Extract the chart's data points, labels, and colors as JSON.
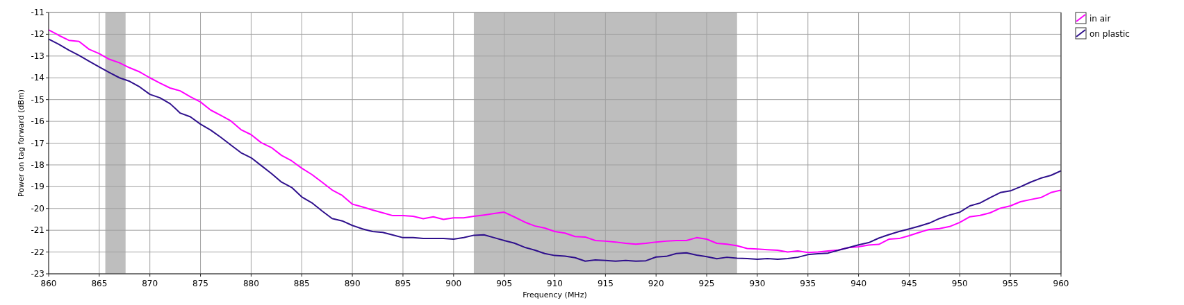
{
  "chart_data": {
    "type": "line",
    "xlabel": "Frequency (MHz)",
    "ylabel": "Power on tag forward (dBm)",
    "x": [
      860,
      861,
      862,
      863,
      864,
      865,
      866,
      867,
      868,
      869,
      870,
      871,
      872,
      873,
      874,
      875,
      876,
      877,
      878,
      879,
      880,
      881,
      882,
      883,
      884,
      885,
      886,
      887,
      888,
      889,
      890,
      891,
      892,
      893,
      894,
      895,
      896,
      897,
      898,
      899,
      900,
      901,
      902,
      903,
      904,
      905,
      906,
      907,
      908,
      909,
      910,
      911,
      912,
      913,
      914,
      915,
      916,
      917,
      918,
      919,
      920,
      921,
      922,
      923,
      924,
      925,
      926,
      927,
      928,
      929,
      930,
      931,
      932,
      933,
      934,
      935,
      936,
      937,
      938,
      939,
      940,
      941,
      942,
      943,
      944,
      945,
      946,
      947,
      948,
      949,
      950,
      951,
      952,
      953,
      954,
      955,
      956,
      957,
      958,
      959,
      960
    ],
    "series": [
      {
        "name": "in air",
        "color": "#ff00ff",
        "values": [
          -11.8,
          -12.05,
          -12.28,
          -12.33,
          -12.69,
          -12.89,
          -13.15,
          -13.31,
          -13.54,
          -13.73,
          -14.0,
          -14.24,
          -14.47,
          -14.6,
          -14.87,
          -15.11,
          -15.48,
          -15.72,
          -15.98,
          -16.38,
          -16.61,
          -16.98,
          -17.2,
          -17.56,
          -17.81,
          -18.15,
          -18.44,
          -18.79,
          -19.15,
          -19.4,
          -19.8,
          -19.93,
          -20.07,
          -20.2,
          -20.33,
          -20.33,
          -20.36,
          -20.47,
          -20.38,
          -20.5,
          -20.43,
          -20.43,
          -20.36,
          -20.3,
          -20.23,
          -20.17,
          -20.39,
          -20.62,
          -20.8,
          -20.9,
          -21.06,
          -21.13,
          -21.29,
          -21.31,
          -21.47,
          -21.5,
          -21.54,
          -21.6,
          -21.64,
          -21.6,
          -21.54,
          -21.5,
          -21.47,
          -21.47,
          -21.34,
          -21.41,
          -21.6,
          -21.64,
          -21.71,
          -21.84,
          -21.86,
          -21.89,
          -21.92,
          -22.0,
          -21.95,
          -22.02,
          -22.0,
          -21.95,
          -21.91,
          -21.8,
          -21.76,
          -21.68,
          -21.65,
          -21.41,
          -21.38,
          -21.25,
          -21.1,
          -20.96,
          -20.92,
          -20.83,
          -20.64,
          -20.38,
          -20.32,
          -20.2,
          -19.99,
          -19.88,
          -19.69,
          -19.59,
          -19.5,
          -19.27,
          -19.16
        ]
      },
      {
        "name": "on plastic",
        "color": "#2e0f8c",
        "values": [
          -12.22,
          -12.46,
          -12.73,
          -12.97,
          -13.24,
          -13.5,
          -13.76,
          -14.0,
          -14.16,
          -14.42,
          -14.76,
          -14.92,
          -15.19,
          -15.62,
          -15.79,
          -16.13,
          -16.4,
          -16.73,
          -17.09,
          -17.44,
          -17.67,
          -18.03,
          -18.39,
          -18.79,
          -19.03,
          -19.47,
          -19.74,
          -20.11,
          -20.46,
          -20.57,
          -20.78,
          -20.94,
          -21.06,
          -21.1,
          -21.22,
          -21.34,
          -21.34,
          -21.38,
          -21.38,
          -21.38,
          -21.41,
          -21.34,
          -21.23,
          -21.21,
          -21.34,
          -21.47,
          -21.59,
          -21.78,
          -21.91,
          -22.07,
          -22.16,
          -22.19,
          -22.26,
          -22.42,
          -22.36,
          -22.39,
          -22.42,
          -22.39,
          -22.42,
          -22.4,
          -22.23,
          -22.2,
          -22.07,
          -22.04,
          -22.14,
          -22.21,
          -22.31,
          -22.24,
          -22.28,
          -22.3,
          -22.33,
          -22.3,
          -22.33,
          -22.3,
          -22.24,
          -22.12,
          -22.08,
          -22.05,
          -21.92,
          -21.8,
          -21.67,
          -21.57,
          -21.36,
          -21.2,
          -21.06,
          -20.94,
          -20.81,
          -20.67,
          -20.46,
          -20.3,
          -20.17,
          -19.88,
          -19.75,
          -19.5,
          -19.27,
          -19.19,
          -19.0,
          -18.79,
          -18.61,
          -18.48,
          -18.27
        ]
      }
    ],
    "bands": [
      {
        "axis": "x",
        "from": 865.6,
        "to": 867.6,
        "color": "#bebebe"
      },
      {
        "axis": "x",
        "from": 902,
        "to": 928,
        "color": "#bebebe"
      }
    ],
    "xlim": [
      860,
      960
    ],
    "xticks": [
      860,
      865,
      870,
      875,
      880,
      885,
      890,
      895,
      900,
      905,
      910,
      915,
      920,
      925,
      930,
      935,
      940,
      945,
      950,
      955,
      960
    ],
    "ylim": [
      -23,
      -11
    ],
    "yticks": [
      -11,
      -12,
      -13,
      -14,
      -15,
      -16,
      -17,
      -18,
      -19,
      -20,
      -21,
      -22,
      -23
    ],
    "grid": true,
    "legend": "top right",
    "marker": "none",
    "line_style": "solid"
  }
}
